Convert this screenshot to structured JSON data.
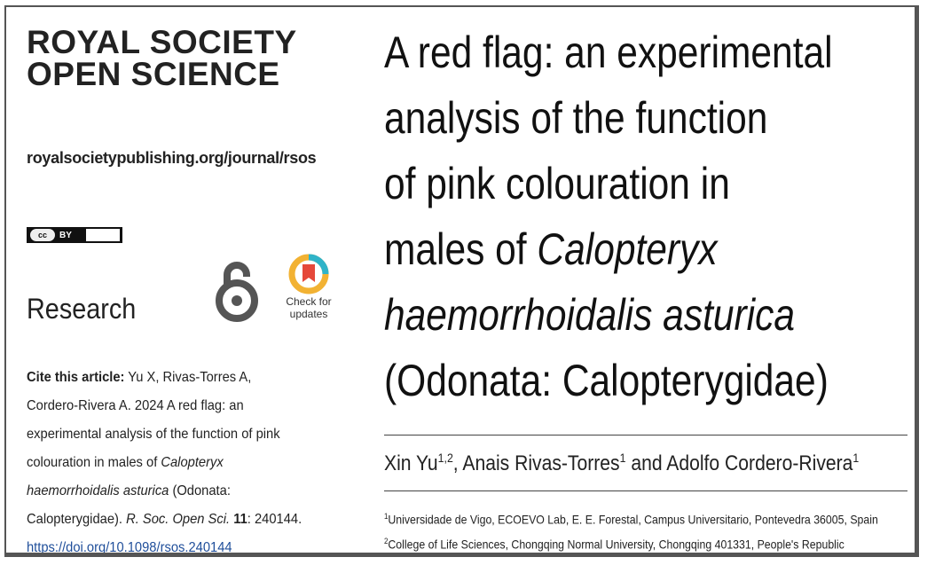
{
  "journal": {
    "line1": "ROYAL SOCIETY",
    "line2": "OPEN SCIENCE"
  },
  "site_url": "royalsocietypublishing.org/journal/rsos",
  "license": {
    "badge": "cc",
    "label": "BY"
  },
  "section": "Research",
  "open_access_icon": "open-access-lock-icon",
  "check_updates": {
    "line1": "Check for",
    "line2": "updates"
  },
  "cite": {
    "label": "Cite this article:",
    "text_a": " Yu X, Rivas-Torres A, Cordero-Rivera A. 2024 A red flag: an experimental analysis of the function of pink colouration in males of ",
    "species_italic": "Calopteryx haemorrhoidalis asturica",
    "text_b": " (Odonata: Calopterygidae). ",
    "journal_italic": "R. Soc. Open Sci.",
    "volume": "11",
    "text_c": ":",
    "article": "240144.",
    "doi": "https://doi.org/10.1098/rsos.240144"
  },
  "title": {
    "line1": "A red flag: an experimental",
    "line2": "analysis of the function",
    "line3": "of pink colouration in",
    "line4_plain": "males of ",
    "line4_italic": "Calopteryx",
    "line5_italic": "haemorrhoidalis asturica",
    "line6": "(Odonata: Calopterygidae)"
  },
  "authors": [
    {
      "name": "Xin Yu",
      "sup": "1,2",
      "sep": ", "
    },
    {
      "name": "Anais Rivas-Torres",
      "sup": "1",
      "sep": " and "
    },
    {
      "name": "Adolfo Cordero-Rivera",
      "sup": "1",
      "sep": ""
    }
  ],
  "affiliations": [
    {
      "sup": "1",
      "text": "Universidade de Vigo, ECOEVO Lab, E. E. Forestal, Campus Universitario, Pontevedra 36005, Spain"
    },
    {
      "sup": "2",
      "text": "College of Life Sciences, Chongqing Normal University, Chongqing 401331, People's Republic"
    }
  ],
  "colors": {
    "doi_link": "#1f4e9a",
    "check_ring": "#f2b233",
    "check_ring_alt": "#2fb3c8",
    "check_bookmark": "#e5483a"
  }
}
